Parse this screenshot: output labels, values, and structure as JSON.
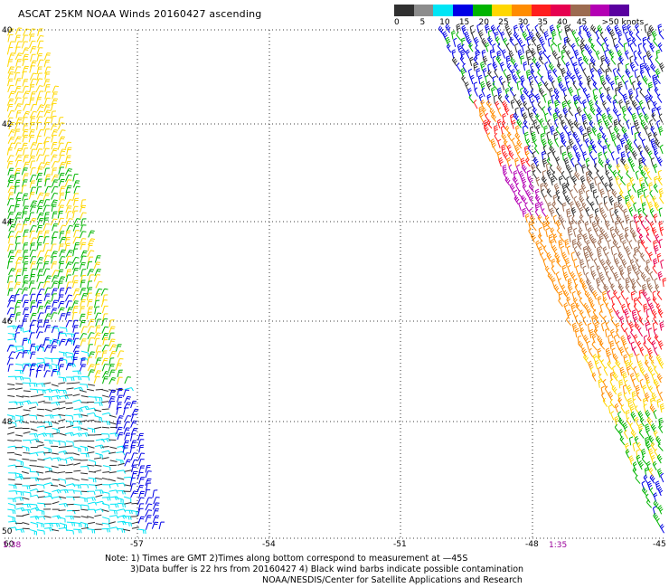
{
  "title": "ASCAT 25KM NOAA Winds 20160427 ascending",
  "legend": {
    "colors": [
      "#303030",
      "#8c8c8c",
      "#00e5f5",
      "#0000e6",
      "#00b400",
      "#ffd700",
      "#ff8c00",
      "#ff1e1e",
      "#e60050",
      "#9c6b50",
      "#b400b4",
      "#5a00a0"
    ],
    "labels": [
      "0",
      "5",
      "10",
      "15",
      "20",
      "25",
      "30",
      "35",
      "40",
      "45",
      ">50 knots"
    ]
  },
  "map": {
    "lat_labels": [
      "40",
      "42",
      "44",
      "46",
      "48",
      "50"
    ],
    "lon_labels": [
      "60",
      "-57",
      "-54",
      "-51",
      "-48",
      "-45"
    ],
    "time_left": "1:38",
    "time_right": "1:35"
  },
  "notes": {
    "line1": "Note: 1) Times are GMT 2)Times along bottom correspond to measurement at —45S",
    "line2": "3)Data buffer is 22 hrs from 20160427 4) Black wind barbs indicate possible contamination",
    "line3": "NOAA/NESDIS/Center for Satellite Applications and Research"
  }
}
